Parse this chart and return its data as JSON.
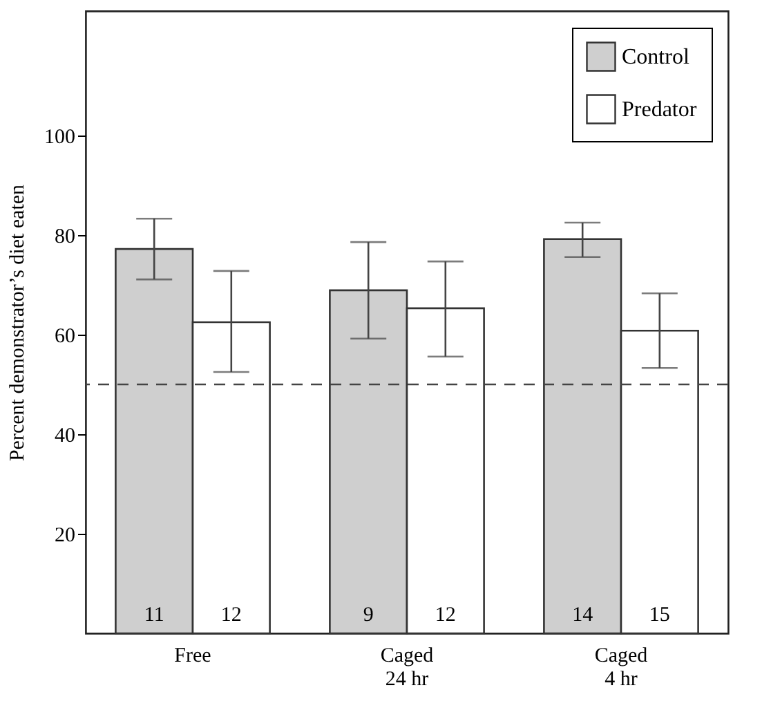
{
  "chart_data": {
    "type": "bar",
    "ylabel": "Percent demonstrator’s diet eaten",
    "categories": [
      "Free",
      "Caged\n24 hr",
      "Caged\n4 hr"
    ],
    "series": [
      {
        "name": "Control",
        "color": "#cfcfcf",
        "values": [
          77.2,
          68.9,
          79.2
        ],
        "errors": [
          [
            71.1,
            83.3
          ],
          [
            59.2,
            78.6
          ],
          [
            75.6,
            82.5
          ]
        ]
      },
      {
        "name": "Predator",
        "color": "#ffffff",
        "values": [
          62.5,
          65.3,
          60.8
        ],
        "errors": [
          [
            52.5,
            72.8
          ],
          [
            55.6,
            74.7
          ],
          [
            53.3,
            68.3
          ]
        ]
      }
    ],
    "ylim": [
      0,
      125
    ],
    "yticks": [
      20,
      40,
      60,
      80,
      100
    ],
    "ref_lines": [
      {
        "axis": "y",
        "value": 50,
        "line_style": "dashed",
        "color": "#444444"
      }
    ],
    "annotations": [
      "11",
      "12",
      "9",
      "12",
      "14",
      "15"
    ],
    "legend": "top right",
    "grid": false
  }
}
